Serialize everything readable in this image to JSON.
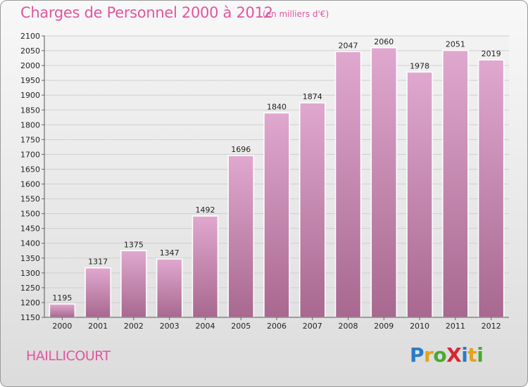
{
  "title": "Charges de Personnel 2000 à 2012",
  "subtitle": "(en milliers d'€)",
  "commune": "HAILLICOURT",
  "logo": {
    "text": "ProXiti",
    "letters": [
      {
        "ch": "P",
        "color": "#2a7bc4"
      },
      {
        "ch": "r",
        "color": "#e5a21a"
      },
      {
        "ch": "o",
        "color": "#4aa82f"
      },
      {
        "ch": "X",
        "color": "#d8262f"
      },
      {
        "ch": "i",
        "color": "#2a7bc4"
      },
      {
        "ch": "t",
        "color": "#e5a21a"
      },
      {
        "ch": "i",
        "color": "#4aa82f"
      }
    ]
  },
  "colors": {
    "bar_top": "#e0a8cf",
    "bar_bottom": "#a8688f",
    "accent": "#e0569f",
    "grid": "#cfcfcf"
  },
  "chart_data": {
    "type": "bar",
    "categories": [
      "2000",
      "2001",
      "2002",
      "2003",
      "2004",
      "2005",
      "2006",
      "2007",
      "2008",
      "2009",
      "2010",
      "2011",
      "2012"
    ],
    "values": [
      1195,
      1317,
      1375,
      1347,
      1492,
      1696,
      1840,
      1874,
      2047,
      2060,
      1978,
      2051,
      2019
    ],
    "title": "Charges de Personnel 2000 à 2012",
    "subtitle": "(en milliers d'€)",
    "ylim": [
      1150,
      2100
    ],
    "yticks": [
      1150,
      1200,
      1250,
      1300,
      1350,
      1400,
      1450,
      1500,
      1550,
      1600,
      1650,
      1700,
      1750,
      1800,
      1850,
      1900,
      1950,
      2000,
      2050,
      2100
    ],
    "grid": true,
    "legend": "none"
  }
}
